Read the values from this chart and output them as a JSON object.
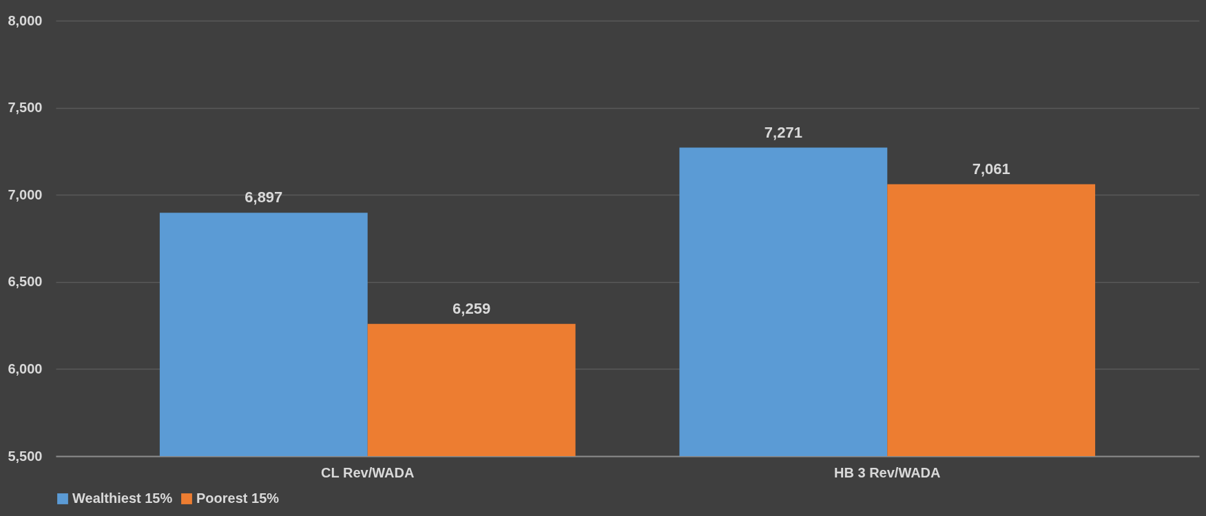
{
  "chart_data": {
    "type": "bar",
    "categories": [
      "CL Rev/WADA",
      "HB 3 Rev/WADA"
    ],
    "series": [
      {
        "name": "Wealthiest 15%",
        "color": "#5b9bd5",
        "values": [
          6897,
          7271
        ],
        "value_labels": [
          "6,897",
          "7,271"
        ]
      },
      {
        "name": "Poorest 15%",
        "color": "#ed7d31",
        "values": [
          6259,
          7061
        ],
        "value_labels": [
          "6,259",
          "7,061"
        ]
      }
    ],
    "ylim": [
      5500,
      8000
    ],
    "yticks": [
      {
        "value": 5500,
        "label": "5,500"
      },
      {
        "value": 6000,
        "label": "6,000"
      },
      {
        "value": 6500,
        "label": "6,500"
      },
      {
        "value": 7000,
        "label": "7,000"
      },
      {
        "value": 7500,
        "label": "7,500"
      },
      {
        "value": 8000,
        "label": "8,000"
      }
    ],
    "grid": "y",
    "legend": "bottom"
  }
}
